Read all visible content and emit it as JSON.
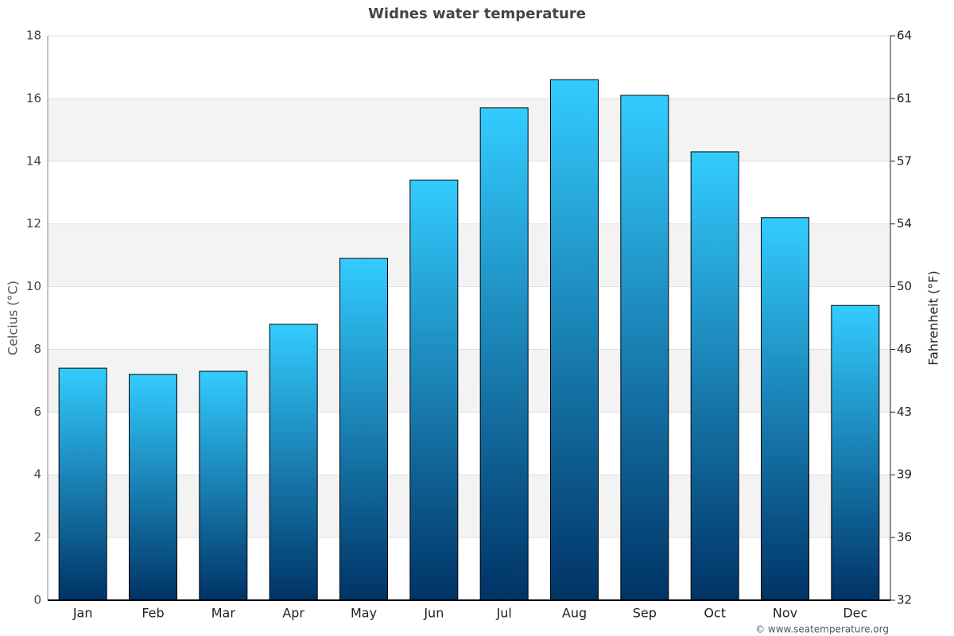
{
  "chart_data": {
    "type": "bar",
    "title": "Widnes water temperature",
    "categories": [
      "Jan",
      "Feb",
      "Mar",
      "Apr",
      "May",
      "Jun",
      "Jul",
      "Aug",
      "Sep",
      "Oct",
      "Nov",
      "Dec"
    ],
    "values": [
      7.4,
      7.2,
      7.3,
      8.8,
      10.9,
      13.4,
      15.7,
      16.6,
      16.1,
      14.3,
      12.2,
      9.4
    ],
    "color": [
      "#33ccff",
      "#003366"
    ],
    "ylabel": "Celcius (°C)",
    "y2label": "Fahrenheit (°F)",
    "ylim": [
      0,
      18
    ],
    "yticks": [
      0,
      2,
      4,
      6,
      8,
      10,
      12,
      14,
      16,
      18
    ],
    "y2lim": [
      32,
      64.4
    ],
    "y2ticks": [
      32,
      {
        "value": 35.6,
        "label": "36"
      },
      {
        "value": 39.2,
        "label": "39"
      },
      {
        "value": 42.8,
        "label": "43"
      },
      {
        "value": 46.4,
        "label": "46"
      },
      50,
      {
        "value": 53.6,
        "label": "54"
      },
      {
        "value": 57.2,
        "label": "57"
      },
      {
        "value": 60.8,
        "label": "61"
      },
      {
        "value": 64.4,
        "label": "64"
      }
    ],
    "grid": true,
    "credit": "© www.seatemperature.org"
  }
}
